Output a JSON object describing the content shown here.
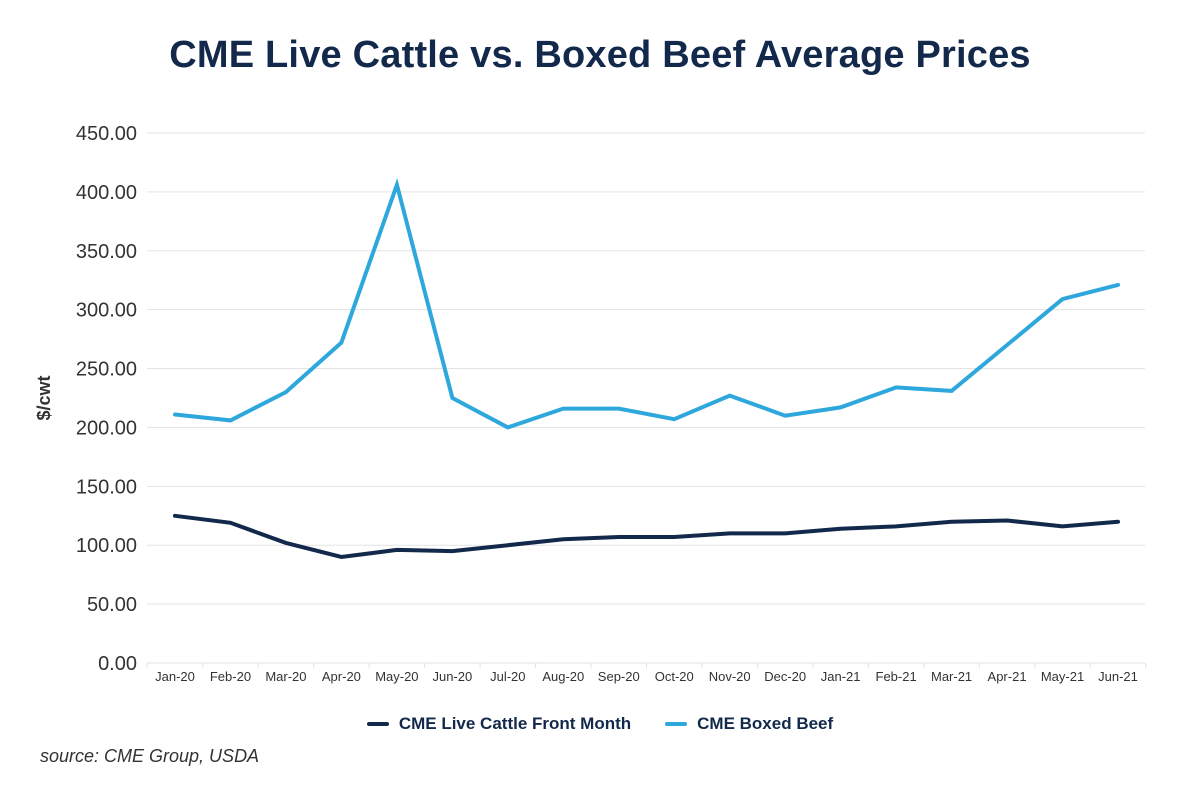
{
  "chart_data": {
    "type": "line",
    "title": "CME Live Cattle vs. Boxed Beef Average Prices",
    "xlabel": "",
    "ylabel": "$/cwt",
    "ylim": [
      0,
      450
    ],
    "yticks": [
      "0.00",
      "50.00",
      "100.00",
      "150.00",
      "200.00",
      "250.00",
      "300.00",
      "350.00",
      "400.00",
      "450.00"
    ],
    "ytick_values": [
      0,
      50,
      100,
      150,
      200,
      250,
      300,
      350,
      400,
      450
    ],
    "grid": true,
    "legend_position": "bottom-center",
    "categories": [
      "Jan-20",
      "Feb-20",
      "Mar-20",
      "Apr-20",
      "May-20",
      "Jun-20",
      "Jul-20",
      "Aug-20",
      "Sep-20",
      "Oct-20",
      "Nov-20",
      "Dec-20",
      "Jan-21",
      "Feb-21",
      "Mar-21",
      "Apr-21",
      "May-21",
      "Jun-21"
    ],
    "series": [
      {
        "name": "CME Live Cattle Front Month",
        "color": "#13294b",
        "values": [
          125,
          119,
          102,
          90,
          96,
          95,
          100,
          105,
          107,
          107,
          110,
          110,
          114,
          116,
          120,
          121,
          116,
          120
        ]
      },
      {
        "name": "CME Boxed Beef",
        "color": "#2ea8dc",
        "values": [
          211,
          206,
          230,
          272,
          406,
          225,
          200,
          216,
          216,
          207,
          227,
          210,
          217,
          234,
          231,
          270,
          309,
          321
        ]
      }
    ]
  },
  "source": "source: CME Group, USDA"
}
